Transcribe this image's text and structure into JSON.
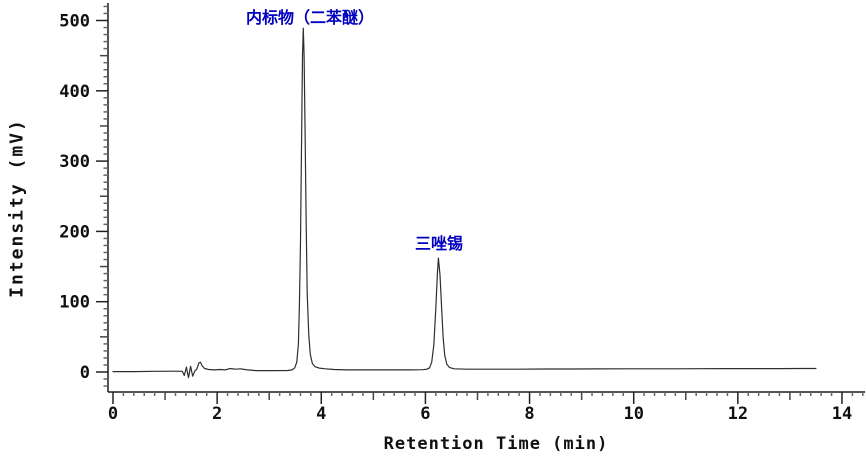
{
  "chart_data": {
    "type": "line",
    "title": "",
    "xlabel": "Retention Time (min)",
    "ylabel": "Intensity (mV)",
    "xlim": [
      0,
      14.45
    ],
    "ylim": [
      -28,
      525
    ],
    "grid": false,
    "legend": false,
    "x_major_ticks": [
      0,
      2,
      4,
      6,
      8,
      10,
      12,
      14
    ],
    "y_major_ticks": [
      0,
      100,
      200,
      300,
      400,
      500
    ],
    "x_medium_step": 1,
    "x_minor_step": 0.2,
    "y_medium_step": 50,
    "y_minor_step": 10,
    "trace_color": "#2e2e2e",
    "axis_color": "#1a1a1a",
    "annotation_color": "#0000c0",
    "peaks": [
      {
        "label": "内标物（二苯醚）",
        "retention_time_min": 3.65,
        "height_mv": 489
      },
      {
        "label": "三唑锡",
        "retention_time_min": 6.25,
        "height_mv": 162
      }
    ],
    "trace_points": [
      [
        0,
        0.5
      ],
      [
        0.4,
        0.6
      ],
      [
        0.8,
        1
      ],
      [
        1.2,
        1.2
      ],
      [
        1.33,
        1
      ],
      [
        1.37,
        -5
      ],
      [
        1.41,
        7
      ],
      [
        1.45,
        -8
      ],
      [
        1.49,
        8
      ],
      [
        1.53,
        -6
      ],
      [
        1.57,
        1
      ],
      [
        1.61,
        4
      ],
      [
        1.65,
        13
      ],
      [
        1.68,
        14
      ],
      [
        1.71,
        9
      ],
      [
        1.76,
        5
      ],
      [
        1.84,
        3.5
      ],
      [
        1.95,
        3
      ],
      [
        2.05,
        3.5
      ],
      [
        2.15,
        3
      ],
      [
        2.25,
        5
      ],
      [
        2.35,
        4
      ],
      [
        2.45,
        4.5
      ],
      [
        2.58,
        3
      ],
      [
        2.75,
        2
      ],
      [
        3.05,
        2
      ],
      [
        3.35,
        2.2
      ],
      [
        3.44,
        3
      ],
      [
        3.49,
        6
      ],
      [
        3.53,
        14
      ],
      [
        3.56,
        40
      ],
      [
        3.58,
        95
      ],
      [
        3.6,
        185
      ],
      [
        3.62,
        320
      ],
      [
        3.64,
        450
      ],
      [
        3.655,
        489
      ],
      [
        3.67,
        450
      ],
      [
        3.69,
        340
      ],
      [
        3.71,
        210
      ],
      [
        3.73,
        112
      ],
      [
        3.76,
        52
      ],
      [
        3.79,
        25
      ],
      [
        3.83,
        12
      ],
      [
        3.88,
        7.5
      ],
      [
        3.96,
        5.5
      ],
      [
        4.08,
        4.5
      ],
      [
        4.25,
        3.5
      ],
      [
        4.5,
        3
      ],
      [
        4.9,
        3
      ],
      [
        5.3,
        3
      ],
      [
        5.7,
        3
      ],
      [
        5.95,
        3.3
      ],
      [
        6.03,
        4
      ],
      [
        6.08,
        6
      ],
      [
        6.12,
        14
      ],
      [
        6.16,
        38
      ],
      [
        6.2,
        90
      ],
      [
        6.23,
        140
      ],
      [
        6.25,
        162
      ],
      [
        6.28,
        138
      ],
      [
        6.31,
        92
      ],
      [
        6.34,
        50
      ],
      [
        6.37,
        24
      ],
      [
        6.41,
        11
      ],
      [
        6.46,
        6.5
      ],
      [
        6.55,
        4.5
      ],
      [
        6.8,
        4
      ],
      [
        7.3,
        4
      ],
      [
        7.8,
        4
      ],
      [
        8.3,
        4.2
      ],
      [
        8.8,
        4.2
      ],
      [
        9.3,
        4.4
      ],
      [
        9.8,
        4.5
      ],
      [
        10.3,
        4.5
      ],
      [
        10.8,
        4.6
      ],
      [
        11.3,
        4.7
      ],
      [
        11.8,
        4.8
      ],
      [
        12.3,
        4.8
      ],
      [
        12.8,
        4.9
      ],
      [
        13.2,
        5
      ],
      [
        13.5,
        5
      ]
    ]
  }
}
